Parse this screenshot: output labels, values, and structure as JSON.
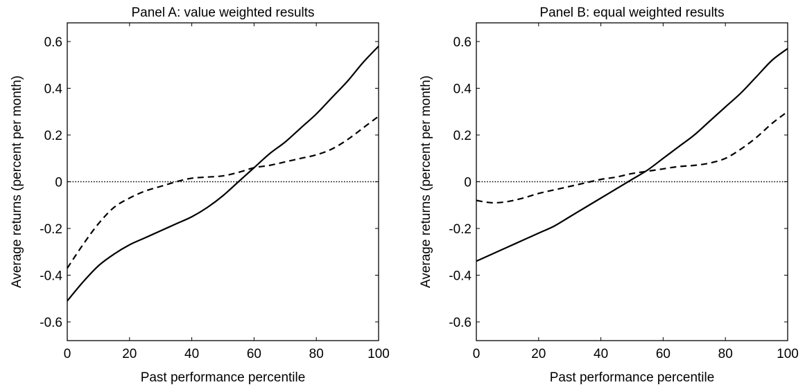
{
  "chart_data": [
    {
      "type": "line",
      "title": "Panel A: value weighted results",
      "xlabel": "Past performance percentile",
      "ylabel": "Average returns (percent per month)",
      "xlim": [
        0,
        100
      ],
      "ylim": [
        -0.68,
        0.68
      ],
      "xticks": [
        0,
        20,
        40,
        60,
        80,
        100
      ],
      "xtick_labels": [
        "0",
        "20",
        "40",
        "60",
        "80",
        "100"
      ],
      "yticks": [
        -0.6,
        -0.4,
        -0.2,
        0,
        0.2,
        0.4,
        0.6
      ],
      "ytick_labels": [
        "-0.6",
        "-0.4",
        "-0.2",
        "0",
        "0.2",
        "0.4",
        "0.6"
      ],
      "grid": false,
      "reference_line": {
        "y": 0,
        "style": "dotted"
      },
      "series": [
        {
          "style": "solid",
          "x": [
            0,
            5,
            10,
            15,
            20,
            25,
            30,
            35,
            40,
            45,
            50,
            55,
            60,
            65,
            70,
            75,
            80,
            85,
            90,
            95,
            100
          ],
          "y": [
            -0.51,
            -0.43,
            -0.36,
            -0.31,
            -0.27,
            -0.24,
            -0.21,
            -0.18,
            -0.15,
            -0.11,
            -0.06,
            0.0,
            0.06,
            0.12,
            0.17,
            0.23,
            0.29,
            0.36,
            0.43,
            0.51,
            0.58
          ]
        },
        {
          "style": "dashed",
          "x": [
            0,
            5,
            10,
            15,
            20,
            25,
            30,
            35,
            40,
            45,
            50,
            55,
            60,
            65,
            70,
            75,
            80,
            85,
            90,
            95,
            100
          ],
          "y": [
            -0.37,
            -0.27,
            -0.18,
            -0.11,
            -0.07,
            -0.04,
            -0.02,
            0.0,
            0.015,
            0.02,
            0.025,
            0.04,
            0.06,
            0.07,
            0.085,
            0.1,
            0.115,
            0.14,
            0.18,
            0.23,
            0.28
          ]
        }
      ]
    },
    {
      "type": "line",
      "title": "Panel B: equal weighted results",
      "xlabel": "Past performance percentile",
      "ylabel": "Average returns (percent per month)",
      "xlim": [
        0,
        100
      ],
      "ylim": [
        -0.68,
        0.68
      ],
      "xticks": [
        0,
        20,
        40,
        60,
        80,
        100
      ],
      "xtick_labels": [
        "0",
        "20",
        "40",
        "60",
        "80",
        "100"
      ],
      "yticks": [
        -0.6,
        -0.4,
        -0.2,
        0,
        0.2,
        0.4,
        0.6
      ],
      "ytick_labels": [
        "-0.6",
        "-0.4",
        "-0.2",
        "0",
        "0.2",
        "0.4",
        "0.6"
      ],
      "grid": false,
      "reference_line": {
        "y": 0,
        "style": "dotted"
      },
      "series": [
        {
          "style": "solid",
          "x": [
            0,
            5,
            10,
            15,
            20,
            25,
            30,
            35,
            40,
            45,
            50,
            55,
            60,
            65,
            70,
            75,
            80,
            85,
            90,
            95,
            100
          ],
          "y": [
            -0.34,
            -0.31,
            -0.28,
            -0.25,
            -0.22,
            -0.19,
            -0.15,
            -0.11,
            -0.07,
            -0.03,
            0.01,
            0.05,
            0.1,
            0.15,
            0.2,
            0.26,
            0.32,
            0.38,
            0.45,
            0.52,
            0.57
          ]
        },
        {
          "style": "dashed",
          "x": [
            0,
            5,
            10,
            15,
            20,
            25,
            30,
            35,
            40,
            45,
            50,
            55,
            60,
            65,
            70,
            75,
            80,
            85,
            90,
            95,
            100
          ],
          "y": [
            -0.08,
            -0.09,
            -0.085,
            -0.07,
            -0.05,
            -0.035,
            -0.02,
            -0.005,
            0.01,
            0.02,
            0.035,
            0.045,
            0.055,
            0.065,
            0.07,
            0.08,
            0.1,
            0.14,
            0.19,
            0.25,
            0.3
          ]
        }
      ]
    }
  ]
}
